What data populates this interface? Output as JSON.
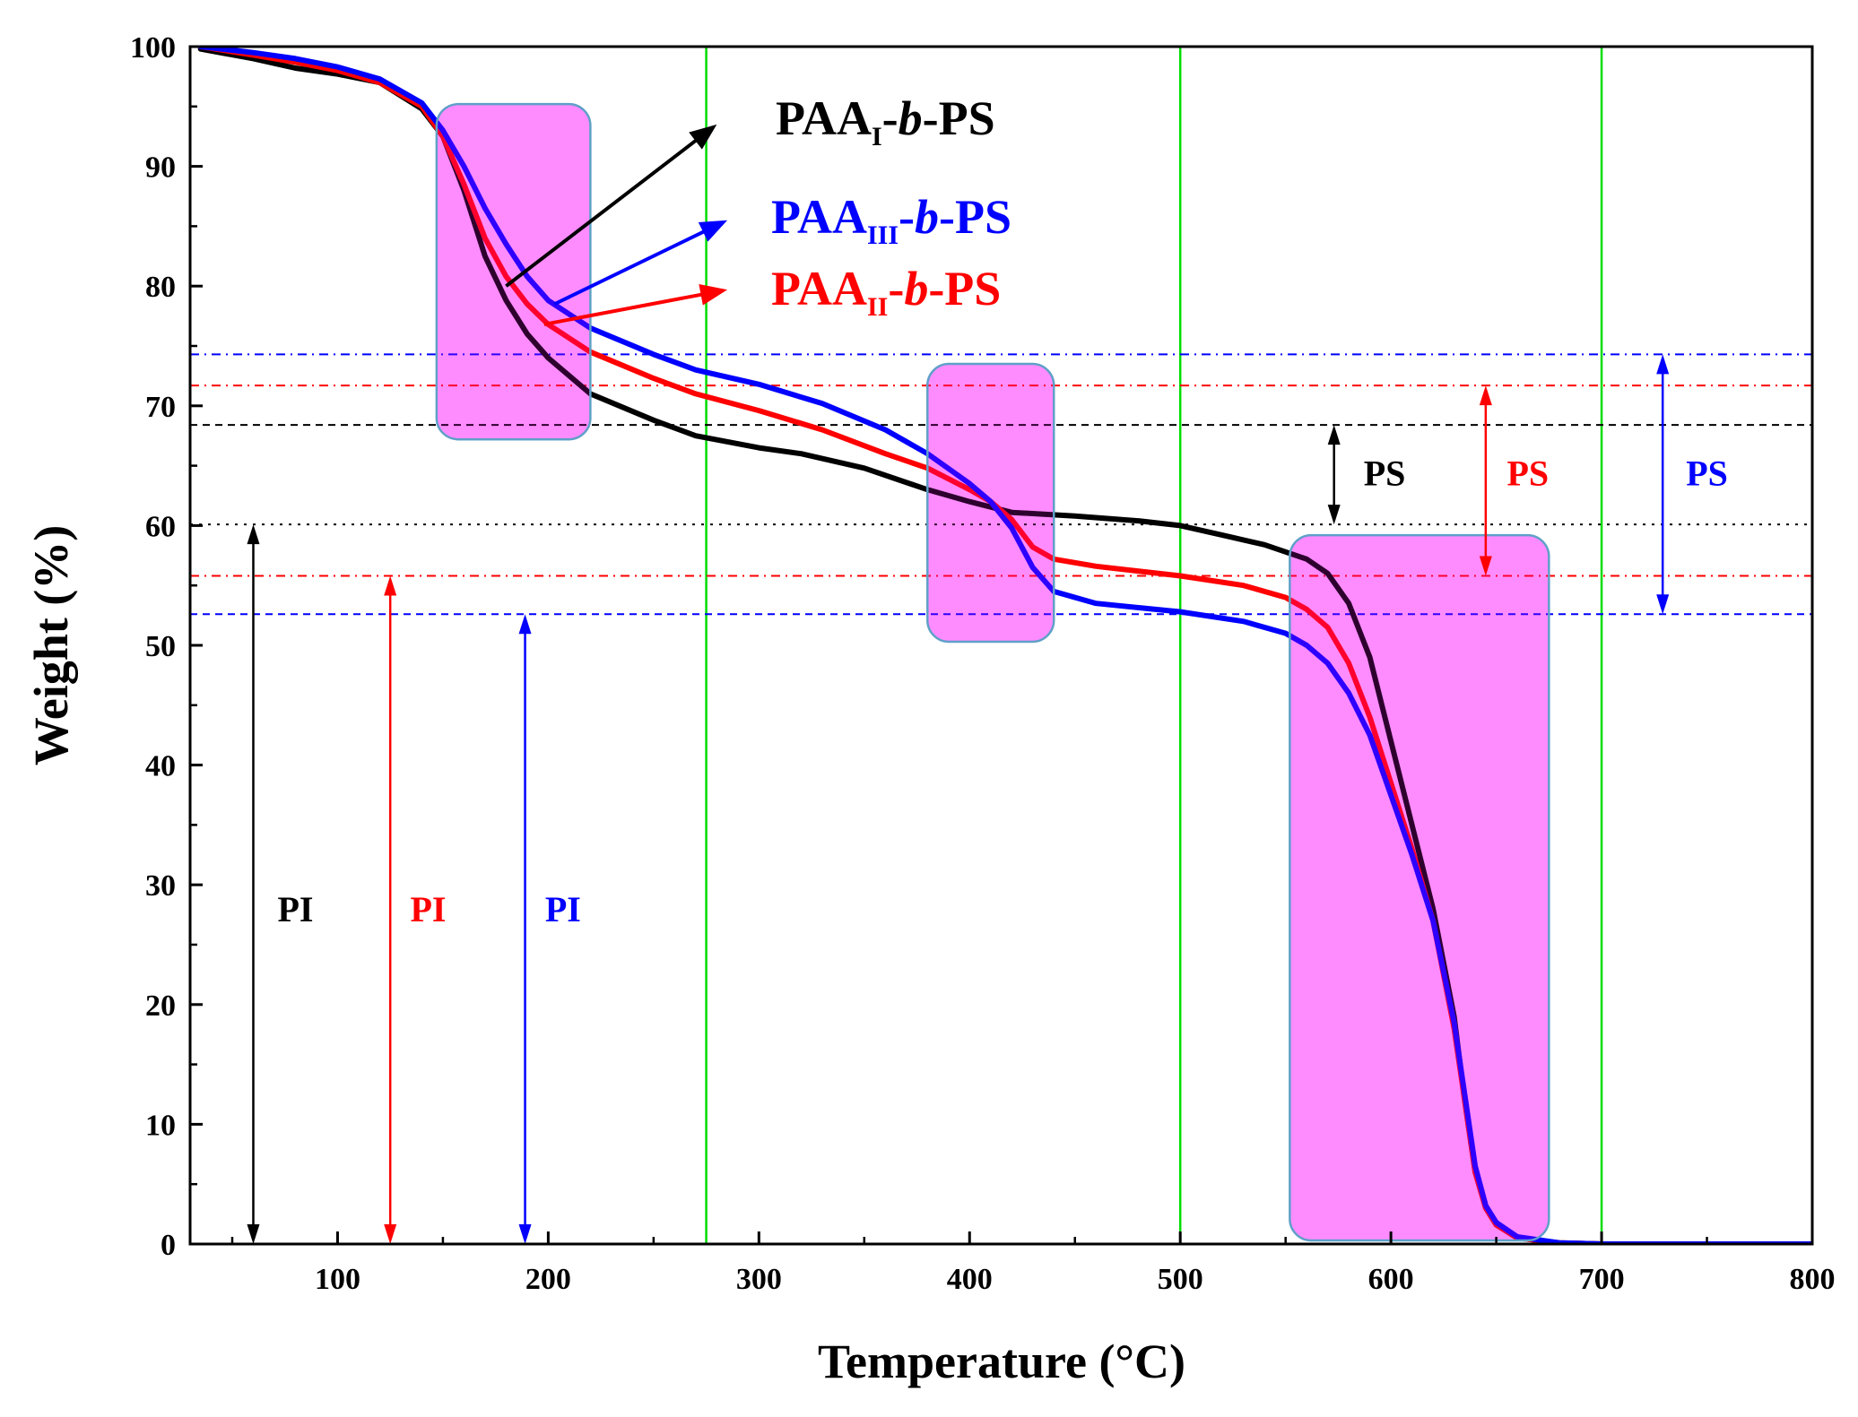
{
  "chart_data": {
    "type": "line",
    "xlabel": "Temperature (°C)",
    "ylabel": "Weight (%)",
    "xlim": [
      30,
      800
    ],
    "ylim": [
      0,
      100
    ],
    "xticks": [
      100,
      200,
      300,
      400,
      500,
      600,
      700,
      800
    ],
    "yticks": [
      0,
      10,
      20,
      30,
      40,
      50,
      60,
      70,
      80,
      90,
      100
    ],
    "grid": false,
    "colors": {
      "black": "#000000",
      "red": "#ff0000",
      "blue": "#0000ff",
      "green": "#00dd00",
      "highlight": "#ff00ff",
      "highlight_border": "#5fa0c8"
    },
    "series": [
      {
        "name": "PAA_I-b-PS",
        "color": "#000000",
        "points": [
          [
            35,
            99.8
          ],
          [
            60,
            99.0
          ],
          [
            80,
            98.2
          ],
          [
            100,
            97.7
          ],
          [
            120,
            97.0
          ],
          [
            140,
            94.8
          ],
          [
            150,
            92.5
          ],
          [
            160,
            88.0
          ],
          [
            170,
            82.5
          ],
          [
            180,
            78.8
          ],
          [
            190,
            76.0
          ],
          [
            200,
            74.0
          ],
          [
            220,
            71.0
          ],
          [
            250,
            68.8
          ],
          [
            270,
            67.5
          ],
          [
            300,
            66.5
          ],
          [
            320,
            66.0
          ],
          [
            350,
            64.8
          ],
          [
            380,
            63.0
          ],
          [
            400,
            62.0
          ],
          [
            420,
            61.1
          ],
          [
            450,
            60.8
          ],
          [
            480,
            60.4
          ],
          [
            500,
            60.0
          ],
          [
            520,
            59.2
          ],
          [
            540,
            58.4
          ],
          [
            560,
            57.2
          ],
          [
            570,
            56.0
          ],
          [
            580,
            53.5
          ],
          [
            590,
            49.0
          ],
          [
            600,
            42.0
          ],
          [
            610,
            35.0
          ],
          [
            620,
            28.0
          ],
          [
            630,
            19.0
          ],
          [
            635,
            12.0
          ],
          [
            640,
            6.0
          ],
          [
            645,
            3.0
          ],
          [
            650,
            1.6
          ],
          [
            660,
            0.5
          ],
          [
            680,
            0.1
          ],
          [
            700,
            0.0
          ],
          [
            800,
            0.0
          ]
        ]
      },
      {
        "name": "PAA_II-b-PS",
        "color": "#ff0000",
        "points": [
          [
            35,
            100.0
          ],
          [
            60,
            99.3
          ],
          [
            80,
            98.7
          ],
          [
            100,
            98.0
          ],
          [
            120,
            97.0
          ],
          [
            140,
            95.0
          ],
          [
            150,
            92.5
          ],
          [
            160,
            88.5
          ],
          [
            170,
            84.0
          ],
          [
            180,
            80.8
          ],
          [
            190,
            78.5
          ],
          [
            200,
            76.8
          ],
          [
            220,
            74.5
          ],
          [
            250,
            72.3
          ],
          [
            270,
            71.0
          ],
          [
            300,
            69.6
          ],
          [
            330,
            68.0
          ],
          [
            360,
            66.0
          ],
          [
            380,
            64.8
          ],
          [
            400,
            63.0
          ],
          [
            410,
            62.0
          ],
          [
            420,
            60.5
          ],
          [
            430,
            58.2
          ],
          [
            440,
            57.2
          ],
          [
            460,
            56.6
          ],
          [
            500,
            55.8
          ],
          [
            530,
            55.0
          ],
          [
            550,
            54.0
          ],
          [
            560,
            53.0
          ],
          [
            570,
            51.5
          ],
          [
            580,
            48.5
          ],
          [
            590,
            44.0
          ],
          [
            600,
            38.5
          ],
          [
            610,
            33.0
          ],
          [
            620,
            27.0
          ],
          [
            630,
            18.0
          ],
          [
            635,
            12.0
          ],
          [
            640,
            6.0
          ],
          [
            645,
            3.0
          ],
          [
            650,
            1.6
          ],
          [
            660,
            0.5
          ],
          [
            680,
            0.1
          ],
          [
            700,
            0.0
          ],
          [
            800,
            0.0
          ]
        ]
      },
      {
        "name": "PAA_III-b-PS",
        "color": "#0000ff",
        "points": [
          [
            35,
            100.0
          ],
          [
            60,
            99.5
          ],
          [
            80,
            99.0
          ],
          [
            100,
            98.3
          ],
          [
            120,
            97.3
          ],
          [
            140,
            95.3
          ],
          [
            150,
            93.0
          ],
          [
            160,
            90.0
          ],
          [
            170,
            86.5
          ],
          [
            180,
            83.5
          ],
          [
            190,
            80.8
          ],
          [
            200,
            78.8
          ],
          [
            220,
            76.5
          ],
          [
            250,
            74.3
          ],
          [
            270,
            73.0
          ],
          [
            300,
            71.8
          ],
          [
            330,
            70.2
          ],
          [
            360,
            68.0
          ],
          [
            380,
            66.0
          ],
          [
            400,
            63.5
          ],
          [
            410,
            62.0
          ],
          [
            420,
            59.8
          ],
          [
            430,
            56.5
          ],
          [
            440,
            54.5
          ],
          [
            460,
            53.5
          ],
          [
            500,
            52.8
          ],
          [
            530,
            52.0
          ],
          [
            550,
            51.0
          ],
          [
            560,
            50.0
          ],
          [
            570,
            48.5
          ],
          [
            580,
            46.0
          ],
          [
            590,
            42.5
          ],
          [
            600,
            37.5
          ],
          [
            610,
            32.5
          ],
          [
            620,
            27.0
          ],
          [
            630,
            18.5
          ],
          [
            635,
            12.5
          ],
          [
            640,
            6.5
          ],
          [
            645,
            3.2
          ],
          [
            650,
            1.8
          ],
          [
            660,
            0.6
          ],
          [
            680,
            0.1
          ],
          [
            700,
            0.0
          ],
          [
            800,
            0.0
          ]
        ]
      }
    ],
    "vertical_lines_x": [
      275,
      500,
      700
    ],
    "horizontal_refs": [
      {
        "y": 74.3,
        "color": "#0000ff",
        "style": "dashdot"
      },
      {
        "y": 71.7,
        "color": "#ff0000",
        "style": "dashdot"
      },
      {
        "y": 68.4,
        "color": "#000000",
        "style": "dashed"
      },
      {
        "y": 60.1,
        "color": "#000000",
        "style": "dotted"
      },
      {
        "y": 55.8,
        "color": "#ff0000",
        "style": "dashdot"
      },
      {
        "y": 52.6,
        "color": "#0000ff",
        "style": "dashed"
      }
    ],
    "highlight_regions": [
      {
        "x": [
          147,
          220
        ],
        "y": [
          67.2,
          95.2
        ]
      },
      {
        "x": [
          380,
          440
        ],
        "y": [
          50.3,
          73.5
        ]
      },
      {
        "x": [
          552,
          675
        ],
        "y": [
          0.3,
          59.2
        ]
      }
    ],
    "labels": {
      "paa1": {
        "main": "PAA",
        "sub": "I",
        "b": "b",
        "ps": "-PS",
        "color": "#000000"
      },
      "paa3": {
        "main": "PAA",
        "sub": "III",
        "b": "b",
        "ps": "-PS",
        "color": "#0000ff"
      },
      "paa2": {
        "main": "PAA",
        "sub": "II",
        "b": "b",
        "ps": "-PS",
        "color": "#ff0000"
      }
    },
    "pointer_arrows": [
      {
        "color": "#000000",
        "from": [
          180,
          80.0
        ],
        "to": [
          280,
          93.5
        ]
      },
      {
        "color": "#0000ff",
        "from": [
          203,
          78.5
        ],
        "to": [
          285,
          85.5
        ]
      },
      {
        "color": "#ff0000",
        "from": [
          198,
          76.8
        ],
        "to": [
          285,
          79.7
        ]
      }
    ],
    "range_arrows": [
      {
        "label": "PI",
        "color": "#000000",
        "x": 60,
        "y1": 0,
        "y2": 60.1,
        "label_x": 80,
        "label_y": 28
      },
      {
        "label": "PI",
        "color": "#ff0000",
        "x": 125,
        "y1": 0,
        "y2": 55.8,
        "label_x": 143,
        "label_y": 28
      },
      {
        "label": "PI",
        "color": "#0000ff",
        "x": 189,
        "y1": 0,
        "y2": 52.6,
        "label_x": 207,
        "label_y": 28
      },
      {
        "label": "PS",
        "color": "#000000",
        "x": 573,
        "y1": 60.1,
        "y2": 68.4,
        "label_x": 597,
        "label_y": 64.4
      },
      {
        "label": "PS",
        "color": "#ff0000",
        "x": 645,
        "y1": 55.8,
        "y2": 71.7,
        "label_x": 665,
        "label_y": 64.4
      },
      {
        "label": "PS",
        "color": "#0000ff",
        "x": 729,
        "y1": 52.6,
        "y2": 74.3,
        "label_x": 750,
        "label_y": 64.4
      }
    ]
  }
}
